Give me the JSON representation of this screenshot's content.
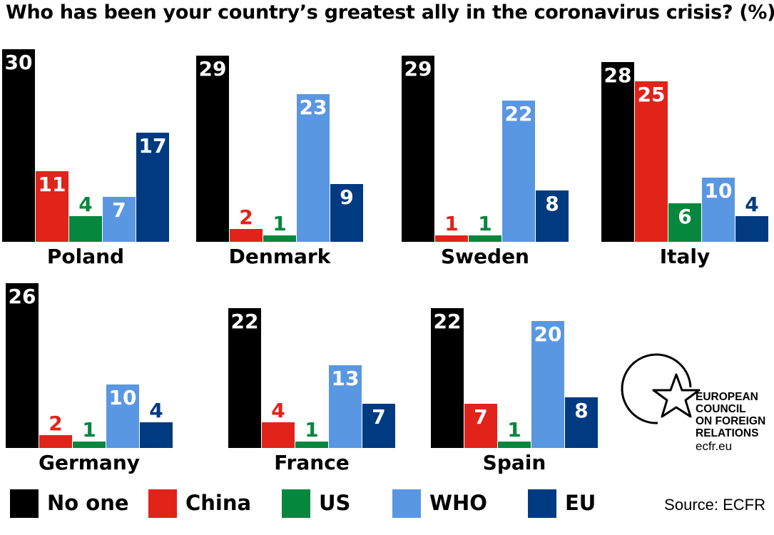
{
  "title": "Who has been your country’s greatest ally in the coronavirus crisis? (%)",
  "source": "Source: ECFR",
  "logo": {
    "line1": "EUROPEAN",
    "line2": "COUNCIL",
    "line3": "ON FOREIGN",
    "line4": "RELATIONS",
    "url": "ecfr.eu"
  },
  "colors": {
    "No one": "#000000",
    "China": "#e2231a",
    "US": "#05873e",
    "WHO": "#5a97e2",
    "EU": "#003a80"
  },
  "chart_data": {
    "type": "bar",
    "categories": [
      "No one",
      "China",
      "US",
      "WHO",
      "EU"
    ],
    "legend": [
      "No one",
      "China",
      "US",
      "WHO",
      "EU"
    ],
    "legend_position": "bottom",
    "panels": [
      {
        "country": "Poland",
        "values": [
          30,
          11,
          4,
          7,
          17
        ]
      },
      {
        "country": "Denmark",
        "values": [
          29,
          2,
          1,
          23,
          9
        ]
      },
      {
        "country": "Sweden",
        "values": [
          29,
          1,
          1,
          22,
          8
        ]
      },
      {
        "country": "Italy",
        "values": [
          28,
          25,
          6,
          10,
          4
        ]
      },
      {
        "country": "Germany",
        "values": [
          26,
          2,
          1,
          10,
          4
        ]
      },
      {
        "country": "France",
        "values": [
          22,
          4,
          1,
          13,
          7
        ]
      },
      {
        "country": "Spain",
        "values": [
          22,
          7,
          1,
          20,
          8
        ]
      }
    ],
    "grid": false
  }
}
